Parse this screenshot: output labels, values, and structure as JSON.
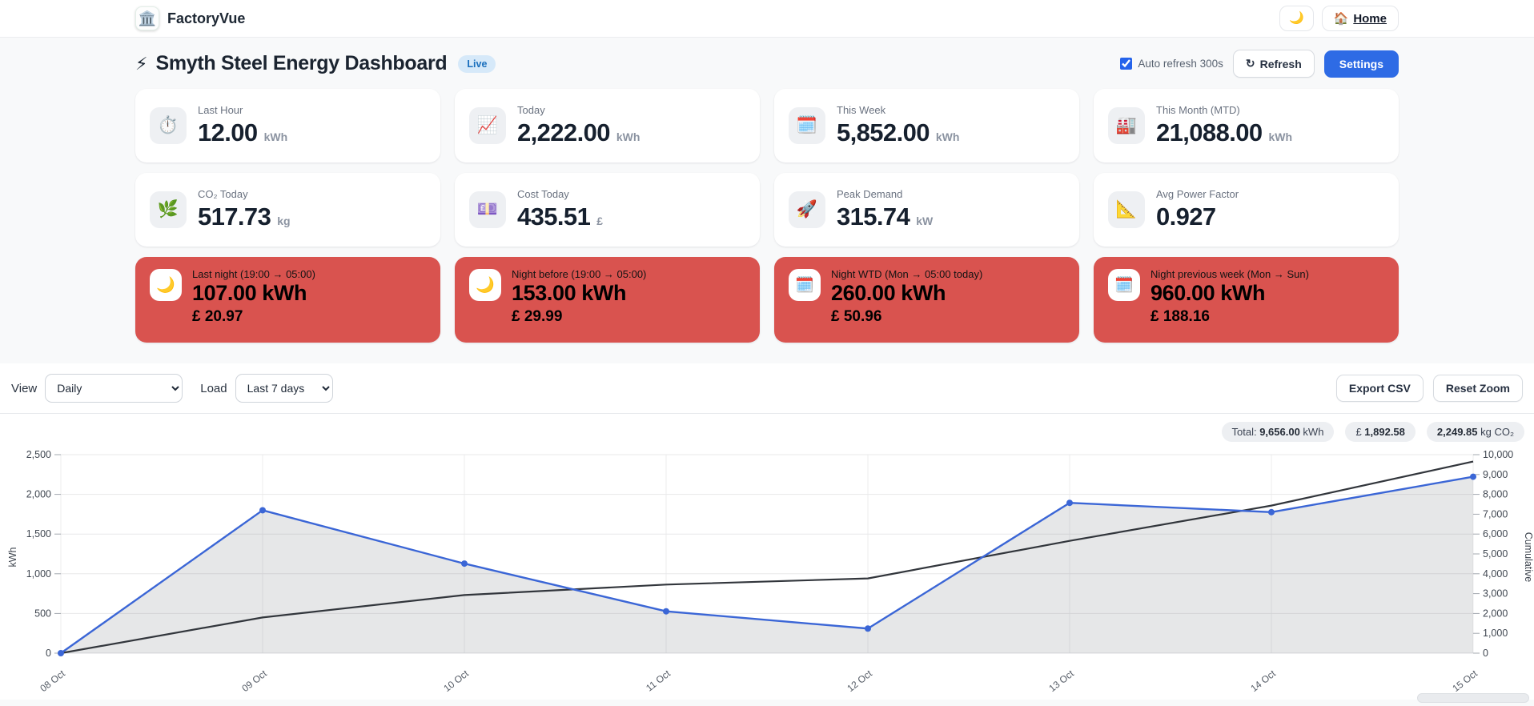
{
  "navbar": {
    "brand": "FactoryVue",
    "logo_icon": "🏛️",
    "theme_toggle_icon": "🌙",
    "home_icon": "🏠",
    "home_label": "Home"
  },
  "header": {
    "title_icon": "⚡",
    "title": "Smyth Steel Energy Dashboard",
    "live_badge": "Live",
    "auto_refresh_label": "Auto refresh 300s",
    "refresh_icon": "↻",
    "refresh_label": "Refresh",
    "settings_label": "Settings"
  },
  "stat_cards": [
    {
      "icon": "⏱️",
      "label": "Last Hour",
      "value": "12.00",
      "unit": "kWh"
    },
    {
      "icon": "📈",
      "label": "Today",
      "value": "2,222.00",
      "unit": "kWh"
    },
    {
      "icon": "🗓️",
      "label": "This Week",
      "value": "5,852.00",
      "unit": "kWh"
    },
    {
      "icon": "🏭",
      "label": "This Month (MTD)",
      "value": "21,088.00",
      "unit": "kWh"
    },
    {
      "icon": "🌿",
      "label": "CO₂ Today",
      "value": "517.73",
      "unit": "kg"
    },
    {
      "icon": "💷",
      "label": "Cost Today",
      "value": "435.51",
      "unit": "£"
    },
    {
      "icon": "🚀",
      "label": "Peak Demand",
      "value": "315.74",
      "unit": "kW"
    },
    {
      "icon": "📐",
      "label": "Avg Power Factor",
      "value": "0.927",
      "unit": ""
    }
  ],
  "night_cards": [
    {
      "icon": "🌙",
      "label": "Last night (19:00 → 05:00)",
      "value": "107.00 kWh",
      "cost": "£ 20.97"
    },
    {
      "icon": "🌙",
      "label": "Night before (19:00 → 05:00)",
      "value": "153.00 kWh",
      "cost": "£ 29.99"
    },
    {
      "icon": "🗓️",
      "label": "Night WTD (Mon → 05:00 today)",
      "value": "260.00 kWh",
      "cost": "£ 50.96"
    },
    {
      "icon": "🗓️",
      "label": "Night previous week (Mon → Sun)",
      "value": "960.00 kWh",
      "cost": "£ 188.16"
    }
  ],
  "controls": {
    "view_label": "View",
    "view_value": "Daily",
    "load_label": "Load",
    "load_value": "Last 7 days",
    "export_label": "Export CSV",
    "reset_label": "Reset Zoom"
  },
  "totals": {
    "energy_prefix": "Total: ",
    "energy_value": "9,656.00",
    "energy_suffix": " kWh",
    "cost_prefix": "£ ",
    "cost_value": "1,892.58",
    "co2_value": "2,249.85",
    "co2_suffix": " kg CO₂"
  },
  "colors": {
    "accent_blue": "#2e6be5",
    "night_card_red": "#d9534f",
    "daily_line": "#3b66d6",
    "cumulative_line": "#32363c",
    "live_badge_bg": "#d6e9f9",
    "live_badge_text": "#1a6fbd"
  },
  "chart_data": {
    "type": "line",
    "title": "",
    "categories": [
      "08 Oct",
      "09 Oct",
      "10 Oct",
      "11 Oct",
      "12 Oct",
      "13 Oct",
      "14 Oct",
      "15 Oct"
    ],
    "series": [
      {
        "name": "Daily kWh",
        "axis": "left",
        "color": "#3b66d6",
        "markers": true,
        "area_fill": "rgba(115,120,130,0.18)",
        "values": [
          0,
          1800,
          1128,
          527,
          310,
          1893,
          1776,
          2222
        ]
      },
      {
        "name": "Cumulative",
        "axis": "right",
        "color": "#32363c",
        "markers": false,
        "values": [
          0,
          1800,
          2928,
          3455,
          3765,
          5658,
          7434,
          9656
        ]
      }
    ],
    "left_axis": {
      "label": "kWh",
      "min": 0,
      "max": 2500,
      "step": 500
    },
    "right_axis": {
      "label": "Cumulative",
      "min": 0,
      "max": 10000,
      "step": 1000
    },
    "grid": true,
    "legend": "none"
  }
}
